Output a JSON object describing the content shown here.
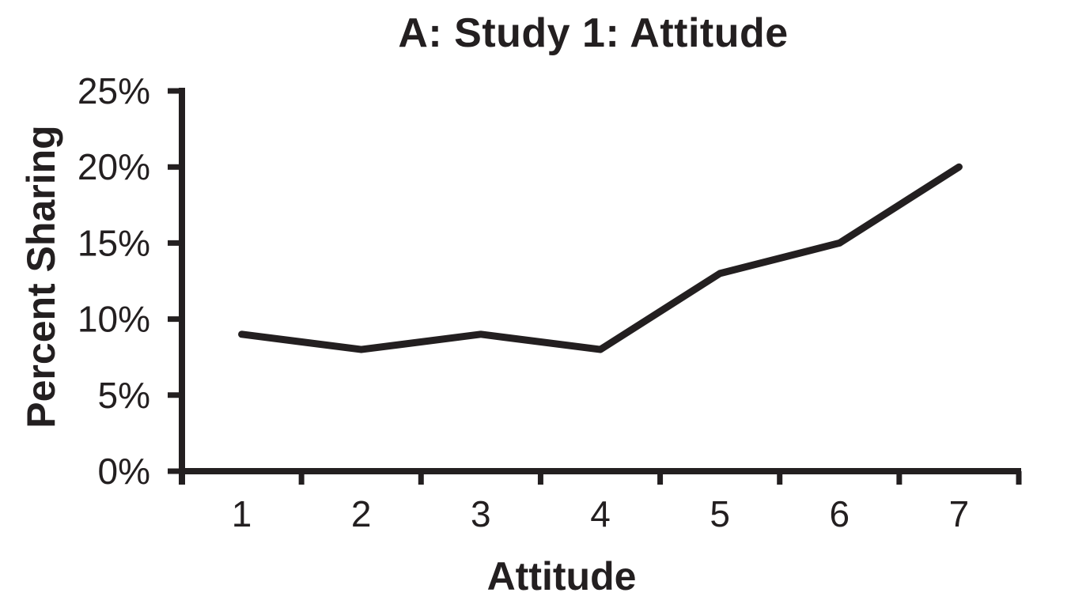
{
  "page": {
    "background_color": "#ffffff"
  },
  "chart_data": {
    "type": "line",
    "title": "A: Study 1: Attitude",
    "xlabel": "Attitude",
    "ylabel": "Percent Sharing",
    "categories": [
      1,
      2,
      3,
      4,
      5,
      6,
      7
    ],
    "x_tick_labels": [
      "1",
      "2",
      "3",
      "4",
      "5",
      "6",
      "7"
    ],
    "series": [
      {
        "name": "Percent Sharing",
        "values": [
          9,
          8,
          9,
          8,
          13,
          15,
          20
        ]
      }
    ],
    "value_unit": "percent",
    "ylim": [
      0,
      25
    ],
    "y_ticks": [
      0,
      5,
      10,
      15,
      20,
      25
    ],
    "y_tick_labels": [
      "0%",
      "5%",
      "10%",
      "15%",
      "20%",
      "25%"
    ],
    "grid": false,
    "legend": false,
    "markers": false,
    "line_color": "#231f20",
    "axis_color": "#231f20",
    "text_color": "#231f20"
  }
}
